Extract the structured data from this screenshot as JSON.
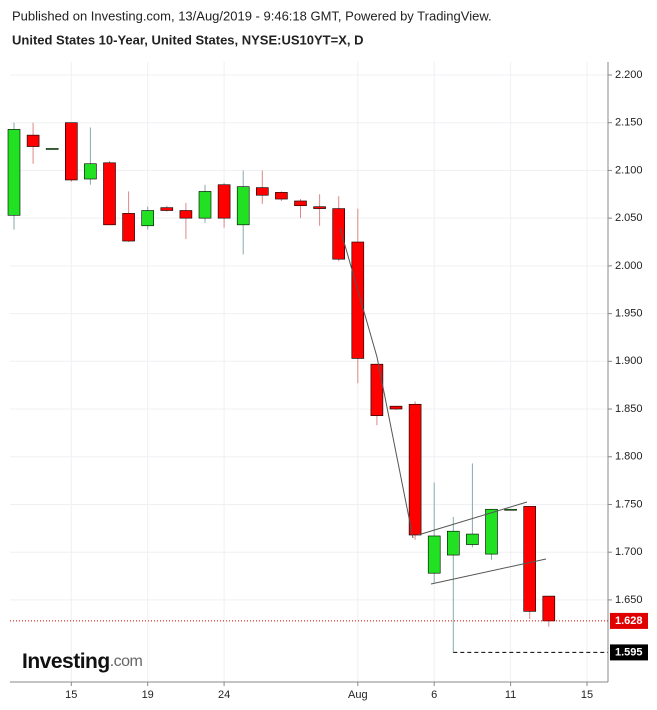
{
  "header": "Published on Investing.com, 13/Aug/2019 - 9:46:18 GMT, Powered by TradingView.",
  "logo": [
    "Investing",
    ".com"
  ],
  "chart_data": {
    "type": "candlestick",
    "title": "United States 10-Year, United States, NYSE:US10YT=X, D",
    "categories": [
      null,
      null,
      null,
      "15",
      null,
      null,
      null,
      "19",
      null,
      null,
      null,
      "24",
      null,
      null,
      null,
      null,
      null,
      null,
      "Aug",
      null,
      null,
      null,
      "6",
      null,
      null,
      null,
      "11",
      null,
      null,
      null,
      "15"
    ],
    "open": [
      2.053,
      2.137,
      2.123,
      2.15,
      2.091,
      2.108,
      2.055,
      2.042,
      2.061,
      2.058,
      2.05,
      2.085,
      2.043,
      2.082,
      2.077,
      2.068,
      2.062,
      2.06,
      2.025,
      1.897,
      1.853,
      1.855,
      1.678,
      1.697,
      1.708,
      1.698,
      1.745,
      1.748,
      1.654,
      null,
      null
    ],
    "high": [
      2.15,
      2.15,
      2.123,
      2.15,
      2.145,
      2.11,
      2.078,
      2.062,
      2.063,
      2.066,
      2.085,
      2.087,
      2.1,
      2.1,
      2.078,
      2.07,
      2.075,
      2.073,
      2.06,
      1.897,
      1.853,
      1.858,
      1.773,
      1.737,
      1.793,
      1.745,
      1.745,
      1.748,
      1.654,
      null,
      null
    ],
    "low": [
      2.038,
      2.107,
      2.123,
      2.088,
      2.085,
      2.043,
      2.025,
      2.038,
      2.057,
      2.028,
      2.045,
      2.04,
      2.012,
      2.065,
      2.068,
      2.05,
      2.042,
      2.005,
      1.877,
      1.833,
      1.849,
      1.713,
      1.668,
      1.595,
      1.705,
      1.692,
      1.745,
      1.63,
      1.622,
      null,
      null
    ],
    "close": [
      2.143,
      2.125,
      2.123,
      2.09,
      2.107,
      2.043,
      2.026,
      2.058,
      2.058,
      2.05,
      2.078,
      2.05,
      2.083,
      2.074,
      2.07,
      2.063,
      2.06,
      2.007,
      1.903,
      1.843,
      1.85,
      1.718,
      1.717,
      1.722,
      1.719,
      1.745,
      1.745,
      1.638,
      1.628,
      null,
      null
    ],
    "up_color": "#22e022",
    "down_color": "#ff0000",
    "ylim": [
      1.564,
      2.2136
    ],
    "yticks": [
      {
        "value": 1.65,
        "label": "1.650"
      },
      {
        "value": 1.7,
        "label": "1.700"
      },
      {
        "value": 1.75,
        "label": "1.750"
      },
      {
        "value": 1.8,
        "label": "1.800"
      },
      {
        "value": 1.85,
        "label": "1.850"
      },
      {
        "value": 1.9,
        "label": "1.900"
      },
      {
        "value": 1.95,
        "label": "1.950"
      },
      {
        "value": 2.0,
        "label": "2.000"
      },
      {
        "value": 2.05,
        "label": "2.050"
      },
      {
        "value": 2.1,
        "label": "2.100"
      },
      {
        "value": 2.15,
        "label": "2.150"
      },
      {
        "value": 2.2,
        "label": "2.200"
      }
    ],
    "price_lines": [
      {
        "value": 1.628,
        "color": "#e00000"
      },
      {
        "value": 1.595,
        "color": "#000000"
      }
    ],
    "grid": true
  }
}
